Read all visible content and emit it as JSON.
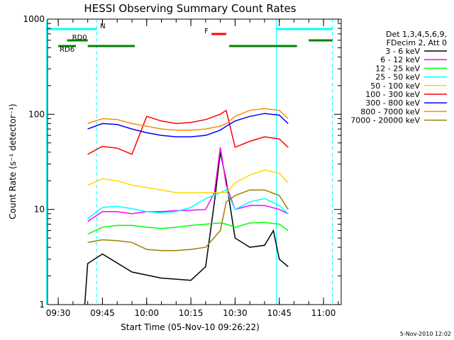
{
  "chart_data": {
    "type": "line",
    "title": "HESSI Observing Summary Count Rates",
    "xlabel": "Start Time (05-Nov-10 09:26:22)",
    "ylabel": "Count Rate (s⁻¹ detector⁻¹)",
    "xlim": [
      "09:26:22",
      "11:06:00"
    ],
    "ylim": [
      1,
      1000
    ],
    "y_scale": "log",
    "x_ticks": [
      "09:30",
      "09:45",
      "10:00",
      "10:15",
      "10:30",
      "10:45",
      "11:00"
    ],
    "y_ticks": [
      "1",
      "10",
      "100",
      "1000"
    ],
    "legend_header": [
      "Det 1,3,4,5,6,9,",
      "FDecim 2, Att 0"
    ],
    "legend_position": "right",
    "footer": "5-Nov-2010 12:02",
    "series": [
      {
        "name": "3 - 6 keV",
        "color": "#000000",
        "x": [
          "09:39",
          "09:40",
          "09:45",
          "09:55",
          "10:05",
          "10:15",
          "10:20",
          "10:23",
          "10:25",
          "10:27",
          "10:30",
          "10:35",
          "10:40",
          "10:43",
          "10:45",
          "10:48"
        ],
        "values": [
          1.0,
          2.7,
          3.4,
          2.2,
          1.9,
          1.8,
          2.5,
          12,
          40,
          20,
          5,
          4,
          4.2,
          6,
          3,
          2.5
        ]
      },
      {
        "name": "6 - 12 keV",
        "color": "#ff00ff",
        "x": [
          "09:40",
          "09:45",
          "09:50",
          "09:55",
          "10:00",
          "10:05",
          "10:10",
          "10:15",
          "10:20",
          "10:23",
          "10:25",
          "10:27",
          "10:30",
          "10:35",
          "10:40",
          "10:45",
          "10:48"
        ],
        "values": [
          7.5,
          9.5,
          9.5,
          9.0,
          9.5,
          9.5,
          9.7,
          9.8,
          10,
          15,
          45,
          18,
          10,
          11,
          11,
          10,
          9.0
        ]
      },
      {
        "name": "12 - 25 keV",
        "color": "#00ff00",
        "x": [
          "09:40",
          "09:45",
          "09:50",
          "09:55",
          "10:00",
          "10:05",
          "10:10",
          "10:15",
          "10:20",
          "10:25",
          "10:27",
          "10:30",
          "10:35",
          "10:40",
          "10:45",
          "10:48"
        ],
        "values": [
          5.5,
          6.5,
          6.8,
          6.8,
          6.5,
          6.3,
          6.5,
          6.8,
          7.0,
          7.2,
          7.0,
          6.5,
          7.2,
          7.3,
          7.0,
          6.0
        ]
      },
      {
        "name": "25 - 50 keV",
        "color": "#00ffff",
        "x": [
          "09:40",
          "09:45",
          "09:50",
          "09:55",
          "10:00",
          "10:05",
          "10:10",
          "10:15",
          "10:20",
          "10:25",
          "10:27",
          "10:30",
          "10:35",
          "10:40",
          "10:45",
          "10:48"
        ],
        "values": [
          8.0,
          10.5,
          10.8,
          10.2,
          9.5,
          9.2,
          9.5,
          10.5,
          13,
          15,
          16,
          10,
          12,
          13,
          11,
          9.0
        ]
      },
      {
        "name": "50 - 100 keV",
        "color": "#ffd700",
        "x": [
          "09:40",
          "09:45",
          "09:50",
          "09:55",
          "10:00",
          "10:05",
          "10:10",
          "10:15",
          "10:20",
          "10:25",
          "10:27",
          "10:30",
          "10:35",
          "10:40",
          "10:45",
          "10:48"
        ],
        "values": [
          18,
          21,
          20,
          18,
          17,
          16,
          15,
          15,
          15,
          15,
          15,
          19,
          23,
          26,
          24,
          19
        ]
      },
      {
        "name": "100 - 300 keV",
        "color": "#ff0000",
        "x": [
          "09:40",
          "09:45",
          "09:50",
          "09:55",
          "10:00",
          "10:05",
          "10:10",
          "10:15",
          "10:20",
          "10:25",
          "10:27",
          "10:30",
          "10:35",
          "10:40",
          "10:45",
          "10:48"
        ],
        "values": [
          38,
          46,
          44,
          38,
          95,
          85,
          80,
          82,
          88,
          100,
          110,
          45,
          52,
          58,
          55,
          45
        ]
      },
      {
        "name": "300 - 800 keV",
        "color": "#0000ff",
        "x": [
          "09:40",
          "09:45",
          "09:50",
          "09:55",
          "10:00",
          "10:05",
          "10:10",
          "10:15",
          "10:20",
          "10:25",
          "10:27",
          "10:30",
          "10:35",
          "10:40",
          "10:45",
          "10:48"
        ],
        "values": [
          70,
          80,
          78,
          70,
          64,
          60,
          58,
          58,
          60,
          68,
          75,
          85,
          95,
          102,
          98,
          80
        ]
      },
      {
        "name": "800 - 7000 keV",
        "color": "#ff8c00",
        "x": [
          "09:40",
          "09:45",
          "09:50",
          "09:55",
          "10:00",
          "10:05",
          "10:10",
          "10:15",
          "10:20",
          "10:25",
          "10:27",
          "10:30",
          "10:35",
          "10:40",
          "10:45",
          "10:48"
        ],
        "values": [
          80,
          90,
          88,
          80,
          75,
          70,
          68,
          68,
          70,
          75,
          80,
          95,
          110,
          115,
          110,
          90
        ]
      },
      {
        "name": "7000 - 20000 keV",
        "color": "#998200",
        "x": [
          "09:40",
          "09:45",
          "09:50",
          "09:55",
          "10:00",
          "10:05",
          "10:10",
          "10:15",
          "10:20",
          "10:25",
          "10:27",
          "10:30",
          "10:35",
          "10:40",
          "10:45",
          "10:48"
        ],
        "values": [
          4.5,
          4.8,
          4.7,
          4.5,
          3.8,
          3.7,
          3.7,
          3.8,
          4.0,
          6,
          12,
          14,
          16,
          16,
          14,
          10
        ]
      }
    ],
    "annotations": [
      {
        "label": "N",
        "color": "#00ffff",
        "segments": [
          [
            "09:26",
            "09:43"
          ],
          [
            "10:44",
            "11:03"
          ]
        ]
      },
      {
        "label": "RD0",
        "color": "#008000",
        "segments": [
          [
            "09:33",
            "09:40"
          ],
          [
            "10:55",
            "11:03"
          ]
        ]
      },
      {
        "label": "RD6",
        "color": "#008000",
        "segments": [
          [
            "09:30",
            "09:36"
          ],
          [
            "09:40",
            "09:56"
          ],
          [
            "10:28",
            "10:51"
          ]
        ]
      },
      {
        "label": "F",
        "color": "#ff0000",
        "segments": [
          [
            "10:22",
            "10:27"
          ]
        ]
      }
    ],
    "vlines": [
      {
        "time": "09:26",
        "color": "#00ffff",
        "style": "solid"
      },
      {
        "time": "09:43",
        "color": "#00ffff",
        "style": "dashed"
      },
      {
        "time": "10:44",
        "color": "#00ffff",
        "style": "solid"
      },
      {
        "time": "11:03",
        "color": "#00ffff",
        "style": "dashed"
      }
    ]
  }
}
